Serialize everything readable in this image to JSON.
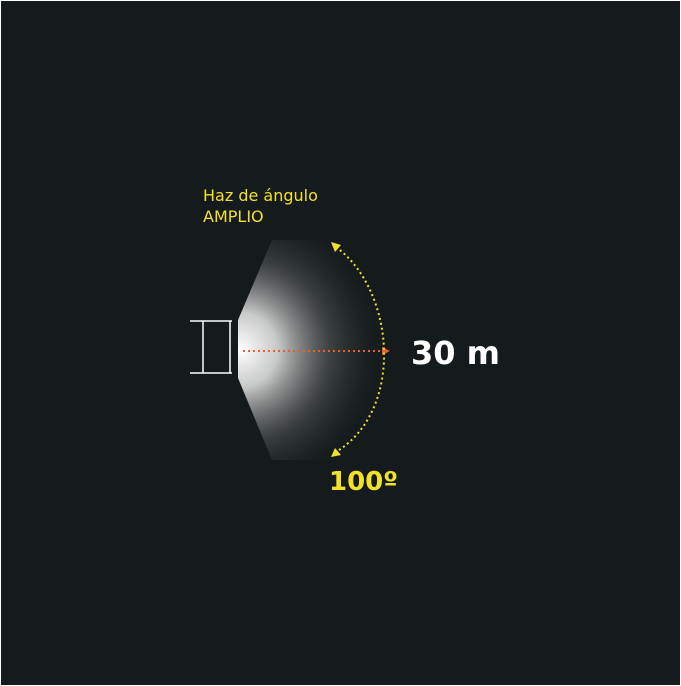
{
  "labels": {
    "beam_line1": "Haz de ángulo",
    "beam_line2": "AMPLIO",
    "distance": "30 m",
    "angle": "100º"
  }
}
